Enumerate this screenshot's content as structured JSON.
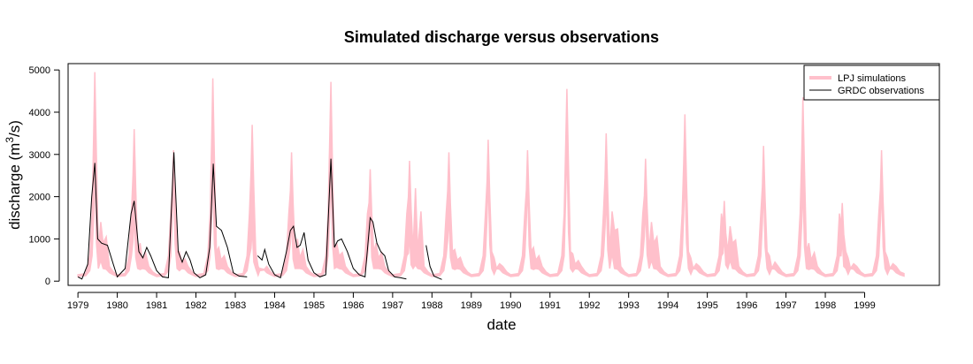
{
  "chart_data": {
    "type": "line",
    "title": "Simulated discharge versus observations",
    "xlabel": "date",
    "ylabel": {
      "text": "discharge (m",
      "superscript": "3",
      "suffix": "/s)"
    },
    "xlim": [
      1978.75,
      2000.9
    ],
    "ylim": [
      -100,
      5150
    ],
    "x_ticks": [
      "1979",
      "1980",
      "1981",
      "1982",
      "1983",
      "1984",
      "1985",
      "1986",
      "1987",
      "1988",
      "1989",
      "1990",
      "1991",
      "1992",
      "1993",
      "1994",
      "1995",
      "1996",
      "1997",
      "1998",
      "1999"
    ],
    "y_ticks": [
      "0",
      "1000",
      "2000",
      "3000",
      "4000",
      "5000"
    ],
    "colors": {
      "simulations": "#ffc0cb",
      "observations": "#000000",
      "frame": "#000000"
    },
    "legend": {
      "position": "top-right",
      "entries": [
        {
          "label": "LPJ simulations",
          "style": "thick-pink-band"
        },
        {
          "label": "GRDC observations",
          "style": "thin-black-line"
        }
      ]
    },
    "series": [
      {
        "name": "LPJ simulations",
        "kind": "band",
        "peaks": [
          {
            "year": 1979,
            "peak_lo": 2600,
            "peak_hi": 4950,
            "summer": [
              900,
              1400
            ]
          },
          {
            "year": 1980,
            "peak_lo": 1600,
            "peak_hi": 3600,
            "summer": [
              500,
              900
            ]
          },
          {
            "year": 1981,
            "peak_lo": 2500,
            "peak_hi": 3100,
            "summer": [
              450,
              700
            ]
          },
          {
            "year": 1982,
            "peak_lo": 2500,
            "peak_hi": 4800,
            "summer": [
              500,
              800
            ]
          },
          {
            "year": 1983,
            "peak_lo": 1300,
            "peak_hi": 3700,
            "summer": [
              250,
              350
            ]
          },
          {
            "year": 1984,
            "peak_lo": 1500,
            "peak_hi": 3050,
            "summer": [
              550,
              1000
            ]
          },
          {
            "year": 1985,
            "peak_lo": 2600,
            "peak_hi": 4720,
            "summer": [
              600,
              900
            ]
          },
          {
            "year": 1986,
            "peak_lo": 1600,
            "peak_hi": 2650,
            "summer": [
              550,
              900
            ]
          },
          {
            "year": 1987,
            "peak_lo": 1100,
            "peak_hi": 2850,
            "summer": [
              700,
              2200
            ]
          },
          {
            "year": 1988,
            "peak_lo": 1600,
            "peak_hi": 3050,
            "summer": [
              500,
              750
            ]
          },
          {
            "year": 1989,
            "peak_lo": 2500,
            "peak_hi": 3350,
            "summer": [
              300,
              550
            ]
          },
          {
            "year": 1990,
            "peak_lo": 2400,
            "peak_hi": 3100,
            "summer": [
              500,
              800
            ]
          },
          {
            "year": 1991,
            "peak_lo": 3300,
            "peak_hi": 4550,
            "summer": [
              400,
              650
            ]
          },
          {
            "year": 1992,
            "peak_lo": 2100,
            "peak_hi": 3500,
            "summer": [
              1200,
              1650
            ]
          },
          {
            "year": 1993,
            "peak_lo": 1800,
            "peak_hi": 2900,
            "summer": [
              900,
              1400
            ]
          },
          {
            "year": 1994,
            "peak_lo": 2600,
            "peak_hi": 3950,
            "summer": [
              300,
              550
            ]
          },
          {
            "year": 1995,
            "peak_lo": 1100,
            "peak_hi": 1900,
            "summer": [
              900,
              1300
            ]
          },
          {
            "year": 1996,
            "peak_lo": 2300,
            "peak_hi": 3200,
            "summer": [
              300,
              600
            ]
          },
          {
            "year": 1997,
            "peak_lo": 2300,
            "peak_hi": 4350,
            "summer": [
              500,
              900
            ]
          },
          {
            "year": 1998,
            "peak_lo": 1000,
            "peak_hi": 1850,
            "summer": [
              300,
              550
            ]
          },
          {
            "year": 1999,
            "peak_lo": 2300,
            "peak_hi": 3100,
            "summer": [
              300,
              550
            ]
          }
        ]
      },
      {
        "name": "GRDC observations",
        "kind": "line",
        "x": [
          1979.0,
          1979.1,
          1979.25,
          1979.35,
          1979.43,
          1979.5,
          1979.6,
          1979.75,
          1979.9,
          1980.0,
          1980.2,
          1980.35,
          1980.43,
          1980.55,
          1980.65,
          1980.75,
          1980.85,
          1981.0,
          1981.15,
          1981.3,
          1981.44,
          1981.55,
          1981.65,
          1981.75,
          1981.85,
          1981.95,
          1982.1,
          1982.25,
          1982.35,
          1982.44,
          1982.52,
          1982.65,
          1982.8,
          1982.95,
          1983.1,
          1983.3,
          null,
          1983.57,
          1983.68,
          1983.75,
          1983.85,
          1984.0,
          1984.15,
          1984.3,
          1984.4,
          1984.48,
          1984.57,
          1984.65,
          1984.75,
          1984.85,
          1985.0,
          1985.15,
          1985.3,
          1985.43,
          1985.52,
          1985.6,
          1985.7,
          1985.85,
          1986.0,
          1986.15,
          1986.3,
          1986.43,
          1986.5,
          1986.6,
          1986.7,
          1986.8,
          1986.9,
          1987.05,
          1987.2,
          1987.35,
          null,
          1987.85,
          1987.95,
          1988.05,
          1988.15,
          1988.25
        ],
        "y": [
          100,
          50,
          400,
          2000,
          2800,
          1000,
          900,
          850,
          400,
          100,
          300,
          1600,
          1900,
          700,
          550,
          800,
          600,
          250,
          100,
          80,
          3050,
          700,
          450,
          700,
          500,
          200,
          80,
          150,
          800,
          2780,
          1300,
          1200,
          800,
          200,
          120,
          100,
          null,
          600,
          500,
          750,
          400,
          150,
          80,
          700,
          1200,
          1300,
          800,
          850,
          1150,
          500,
          200,
          100,
          150,
          2900,
          800,
          950,
          1000,
          700,
          300,
          150,
          100,
          1500,
          1400,
          900,
          700,
          600,
          250,
          100,
          80,
          50,
          null,
          850,
          350,
          120,
          80,
          40
        ]
      }
    ]
  }
}
